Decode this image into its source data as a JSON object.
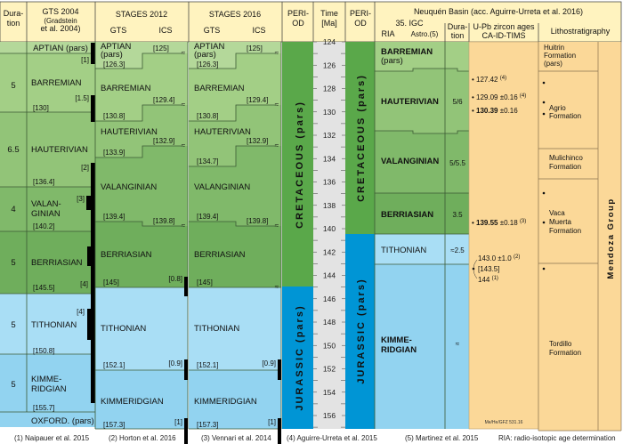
{
  "header": {
    "duration": [
      "Dura-",
      "tion"
    ],
    "gts2004": [
      "GTS 2004",
      "(Gradstein",
      "et al. 2004)"
    ],
    "stages2012": "STAGES 2012",
    "stages2016": "STAGES 2016",
    "gts": "GTS",
    "ics": "ICS",
    "period": [
      "PERI-",
      "OD"
    ],
    "time": [
      "Time",
      "[Ma]"
    ],
    "neuquen": "Neuquén Basin (acc. Aguirre-Urreta et al. 2016)",
    "igc": "35. IGC",
    "ria": "RIA",
    "astro": "Astro.(5)",
    "upb": [
      "U-Pb zircon ages",
      "CA-ID-TIMS"
    ],
    "litho": "Lithostratigraphy"
  },
  "gts2004": {
    "aptian": "APTIAN (pars)",
    "rows": [
      {
        "duration": "5",
        "name": [
          "BARREMIAN"
        ],
        "base": "[130]",
        "unc": "[1]",
        "unc2": "[1.5]"
      },
      {
        "duration": "6.5",
        "name": [
          "HAUTERIVIAN"
        ],
        "base": "[136.4]",
        "unc": "[2]"
      },
      {
        "duration": "4",
        "name": [
          "VALAN-",
          "GINIAN"
        ],
        "base": "[140.2]",
        "unc": "[3]"
      },
      {
        "duration": "5",
        "name": [
          "BERRIASIAN"
        ],
        "base": "[145.5]",
        "unc": "[4]"
      },
      {
        "duration": "5",
        "name": [
          "TITHONIAN"
        ],
        "base": "[150.8]",
        "unc": "[4]"
      },
      {
        "duration": "5",
        "name": [
          "KIMME-",
          "RIDGIAN"
        ],
        "base": "[155.7]"
      }
    ],
    "oxford": "OXFORD. (pars)"
  },
  "stages2012": {
    "aptian": [
      "APTIAN",
      "(pars)"
    ],
    "aptian_gts": "[126.3]",
    "aptian_ics": "[125]",
    "barremian": "BARREMIAN",
    "barremian_gts": "[130.8]",
    "barremian_ics": "[129.4]",
    "hauterivian": "HAUTERIVIAN",
    "hauterivian_gts": "[133.9]",
    "hauterivian_ics": "[132.9]",
    "valanginian": "VALANGINIAN",
    "valanginian_gts": "[139.4]",
    "valanginian_ics": "[139.8]",
    "berriasian": "BERRIASIAN",
    "berriasian_base": "[145]",
    "berriasian_unc": "[0.8]",
    "tithonian": "TITHONIAN",
    "tithonian_base": "[152.1]",
    "tithonian_unc": "[0.9]",
    "kimmeridgian": "KIMMERIDGIAN",
    "kimmeridgian_base": "[157.3]",
    "kimmeridgian_unc": "[1]",
    "approx": "≈"
  },
  "stages2016": {
    "aptian": [
      "APTIAN",
      "(pars)"
    ],
    "aptian_gts": "[126.3]",
    "aptian_ics": "[125]",
    "barremian": "BARREMIAN",
    "barremian_gts": "[130.8]",
    "barremian_ics": "[129.4]",
    "hauterivian": "HAUTERIVIAN",
    "hauterivian_gts": "[134.7]",
    "hauterivian_ics": "[132.9]",
    "valanginian": "VALANGINIAN",
    "valanginian_gts": "[139.4]",
    "valanginian_ics": "[139.8]",
    "berriasian": "BERRIASIAN",
    "berriasian_base": "[145]",
    "tithonian": "TITHONIAN",
    "tithonian_base": "[152.1]",
    "tithonian_unc": "[0.9]",
    "kimmeridgian": "KIMMERIDGIAN",
    "kimmeridgian_base": "[157.3]",
    "kimmeridgian_unc": "[1]"
  },
  "periods": {
    "cretaceous": "CRETACEOUS (pars)",
    "jurassic": "JURASSIC (pars)"
  },
  "time_ticks": [
    "124",
    "126",
    "128",
    "130",
    "132",
    "134",
    "136",
    "138",
    "140",
    "142",
    "144",
    "146",
    "148",
    "150",
    "152",
    "154",
    "156"
  ],
  "neuquen": {
    "barremian": [
      "BARREMIAN",
      "(pars)"
    ],
    "hauterivian": "HAUTERIVIAN",
    "hauterivian_dur": "5/6",
    "valanginian": "VALANGINIAN",
    "valanginian_dur": "5/5.5",
    "berriasian": "BERRIASIAN",
    "berriasian_dur": "3.5",
    "tithonian": "TITHONIAN",
    "tithonian_dur": "≈2.5",
    "kimmeridgian": [
      "KIMME-",
      "RIDGIAN"
    ],
    "kimmeridgian_dur": "≈"
  },
  "upb": {
    "a1": "127.42",
    "a1_ref": "(4)",
    "a2": "129.09 ±0.16",
    "a2_ref": "(4)",
    "a3": "130.39",
    "a3_err": "±0.16",
    "a4": "139.55",
    "a4_err": "±0.18",
    "a4_ref": "(3)",
    "a5": "143.0 ±1.0",
    "a5_ref": "(2)",
    "a6": "[143.5]",
    "a7": "144",
    "a7_ref": "(1)",
    "credit": "Me/He/GFZ 531.16"
  },
  "litho": {
    "huitrin": [
      "Huitrin",
      "Formation",
      "(pars)"
    ],
    "agrio": [
      "Agrio",
      "Formation"
    ],
    "mulichinco": [
      "Mulichinco",
      "Formation"
    ],
    "vaca": [
      "Vaca",
      "Muerta",
      "Formation"
    ],
    "tordillo": [
      "Tordillo",
      "Formation"
    ],
    "group": "Mendoza Group"
  },
  "footer": [
    "(1) Naipauer et al. 2015",
    "(2) Horton et al. 2016",
    "(3) Vennari et al. 2014",
    "(4) Aguirre-Urreta et al. 2015",
    "(5) Martinez et al. 2015",
    "RIA: radio-isotopic age determination"
  ],
  "colors": {
    "header": "#fff3bf",
    "aptian": "#b4d89a",
    "barremian": "#a3cf86",
    "hauterivian": "#92c478",
    "valanginian": "#80b96a",
    "berriasian": "#6fae5c",
    "cretaceous": "#5aa84a",
    "tithonian": "#a9def5",
    "kimmeridgian": "#92d3f0",
    "jurassic": "#0095d5",
    "upb": "#fbd898",
    "time": "#e3e3e3"
  }
}
